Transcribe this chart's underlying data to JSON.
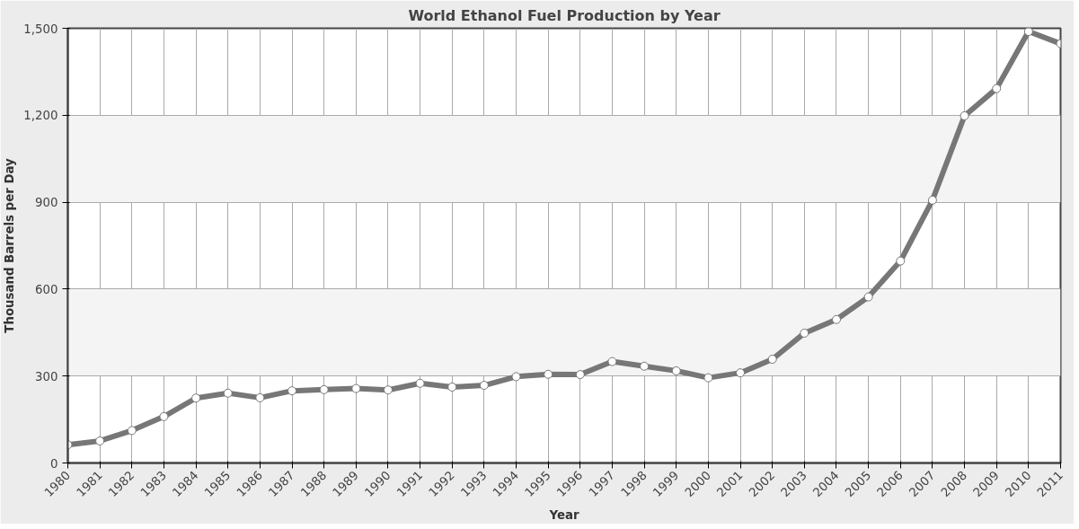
{
  "chart_data": {
    "type": "line",
    "title": "World Ethanol Fuel Production by Year",
    "xlabel": "Year",
    "ylabel": "Thousand Barrels per Day",
    "categories": [
      "1980",
      "1981",
      "1982",
      "1983",
      "1984",
      "1985",
      "1986",
      "1987",
      "1988",
      "1989",
      "1990",
      "1991",
      "1992",
      "1993",
      "1994",
      "1995",
      "1996",
      "1997",
      "1998",
      "1999",
      "2000",
      "2001",
      "2002",
      "2003",
      "2004",
      "2005",
      "2006",
      "2007",
      "2008",
      "2009",
      "2010",
      "2011"
    ],
    "series": [
      {
        "color": "#777777",
        "values": [
          63,
          76,
          112,
          160,
          224,
          241,
          225,
          249,
          253,
          257,
          252,
          275,
          262,
          268,
          298,
          306,
          305,
          350,
          334,
          318,
          294,
          311,
          358,
          448,
          495,
          573,
          697,
          907,
          1198,
          1292,
          1489,
          1447
        ]
      }
    ],
    "ylim": [
      0,
      1500
    ],
    "yticks": [
      0,
      {
        "value": 300,
        "label": "300"
      },
      {
        "value": 600,
        "label": "600"
      },
      {
        "value": 900,
        "label": "900"
      },
      {
        "value": 1200,
        "label": "1,200"
      },
      {
        "value": 1500,
        "label": "1,500"
      }
    ],
    "grid": true,
    "marker": "circle",
    "line_style": "solid"
  }
}
